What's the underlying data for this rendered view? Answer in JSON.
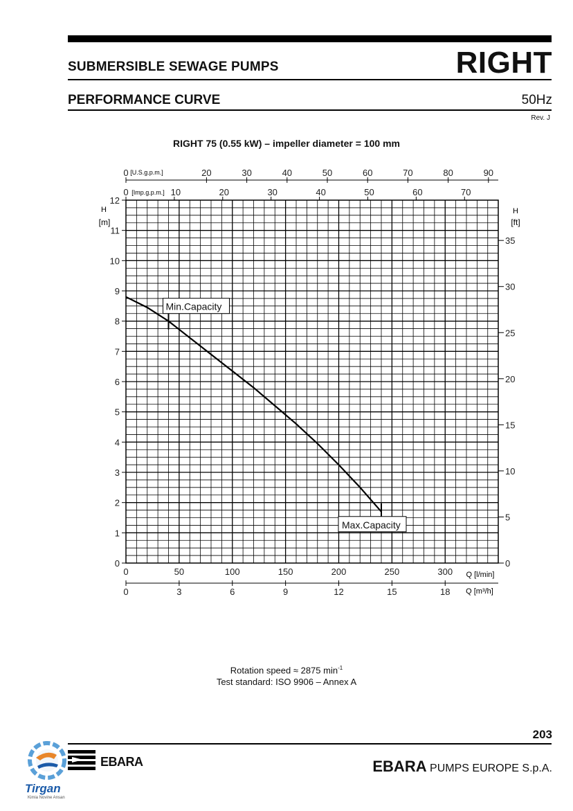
{
  "header": {
    "product_line": "SUBMERSIBLE SEWAGE PUMPS",
    "brand": "RIGHT",
    "section": "PERFORMANCE CURVE",
    "frequency": "50Hz",
    "revision": "Rev. J"
  },
  "chart_title": "RIGHT 75 (0.55 kW) – impeller diameter = 100 mm",
  "chart_data": {
    "type": "line",
    "title": "RIGHT 75 (0.55 kW) – impeller diameter = 100 mm",
    "xlabel": "Q [l/min]",
    "xlabel2": "Q [m³/h]",
    "xlabel_top1": "[U.S.g.p.m.]",
    "xlabel_top2": "[Imp.g.p.m.]",
    "ylabel_left_top": "H",
    "ylabel_left_unit": "[m]",
    "ylabel_right_top": "H",
    "ylabel_right_unit": "[ft]",
    "xlim": [
      0,
      350
    ],
    "ylim": [
      0,
      12
    ],
    "grid": true,
    "x_ticks": [
      0,
      50,
      100,
      150,
      200,
      250,
      300
    ],
    "x_m3h_ticks": [
      0,
      3,
      6,
      9,
      12,
      15,
      18
    ],
    "usgpm_ticks": [
      0,
      20,
      30,
      40,
      50,
      60,
      70,
      80,
      90
    ],
    "impgpm_ticks": [
      0,
      10,
      20,
      30,
      40,
      50,
      60,
      70
    ],
    "y_ticks": [
      0,
      1,
      2,
      3,
      4,
      5,
      6,
      7,
      8,
      9,
      10,
      11,
      12
    ],
    "ft_ticks": [
      0,
      5,
      10,
      15,
      20,
      25,
      30,
      35
    ],
    "series": [
      {
        "x": [
          0,
          20,
          40,
          60,
          80,
          100,
          120,
          140,
          160,
          180,
          200,
          220,
          240
        ],
        "y": [
          8.8,
          8.45,
          8.0,
          7.45,
          6.9,
          6.35,
          5.8,
          5.2,
          4.6,
          3.95,
          3.25,
          2.5,
          1.7
        ]
      }
    ],
    "annotations": [
      {
        "label": "Min.Capacity",
        "x": 40,
        "y": 8.0
      },
      {
        "label": "Max.Capacity",
        "x": 240,
        "y": 1.7
      }
    ]
  },
  "footer": {
    "rotation_text": "Rotation speed ≈ 2875 min",
    "rotation_sup": "-1",
    "test_standard": "Test standard: ISO 9906 – Annex A",
    "page_number": "203",
    "company_bold": "EBARA",
    "company_rest": " PUMPS EUROPE S.p.A.",
    "ebara_logo_text": "EBARA",
    "tirgan_logo_text": "Tirgan",
    "tirgan_tagline": "Kimia Novine Ansan"
  }
}
